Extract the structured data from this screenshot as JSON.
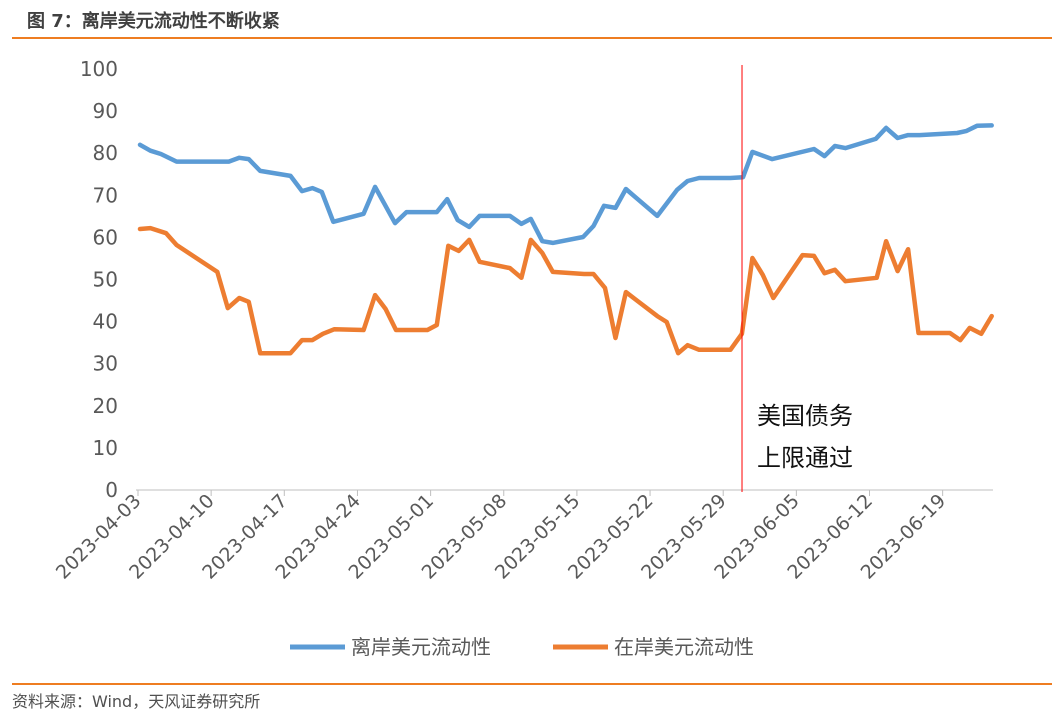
{
  "header": {
    "title": "图 7：离岸美元流动性不断收紧"
  },
  "footer": {
    "source": "资料来源：Wind，天风证券研究所"
  },
  "colors": {
    "offshore": "#5B9BD5",
    "onshore": "#ED7D31",
    "marker_line": "#FF0000",
    "rule": "#EE7D21"
  },
  "chart_data": {
    "type": "line",
    "title": "离岸美元流动性不断收紧",
    "x_unit": "days since 2023-04-03",
    "ylim": [
      0,
      100
    ],
    "yticks": [
      0,
      10,
      20,
      30,
      40,
      50,
      60,
      70,
      80,
      90,
      100
    ],
    "xticks": [
      {
        "day": 0,
        "label": "2023-04-03"
      },
      {
        "day": 7,
        "label": "2023-04-10"
      },
      {
        "day": 14,
        "label": "2023-04-17"
      },
      {
        "day": 21,
        "label": "2023-04-24"
      },
      {
        "day": 28,
        "label": "2023-05-01"
      },
      {
        "day": 35,
        "label": "2023-05-08"
      },
      {
        "day": 42,
        "label": "2023-05-15"
      },
      {
        "day": 49,
        "label": "2023-05-22"
      },
      {
        "day": 56,
        "label": "2023-05-29"
      },
      {
        "day": 63,
        "label": "2023-06-05"
      },
      {
        "day": 70,
        "label": "2023-06-12"
      },
      {
        "day": 77,
        "label": "2023-06-19"
      }
    ],
    "xlim": [
      0,
      82
    ],
    "legend_position": "bottom",
    "grid": false,
    "annotation": {
      "day": 57.8,
      "lines": [
        "美国债务",
        "上限通过"
      ]
    },
    "series": [
      {
        "name": "离岸美元流动性",
        "points": [
          [
            0,
            82.0
          ],
          [
            1,
            80.6
          ],
          [
            2,
            79.8
          ],
          [
            3.5,
            78.0
          ],
          [
            8.5,
            78.0
          ],
          [
            9.5,
            78.9
          ],
          [
            10.4,
            78.6
          ],
          [
            11.5,
            75.8
          ],
          [
            14.4,
            74.6
          ],
          [
            15.5,
            71.0
          ],
          [
            16.5,
            71.7
          ],
          [
            17.4,
            70.8
          ],
          [
            18.5,
            63.7
          ],
          [
            21.4,
            65.6
          ],
          [
            22.5,
            72.0
          ],
          [
            24.4,
            63.4
          ],
          [
            25.5,
            66.0
          ],
          [
            28.4,
            66.0
          ],
          [
            29.4,
            69.1
          ],
          [
            30.4,
            64.1
          ],
          [
            31.5,
            62.5
          ],
          [
            32.5,
            65.1
          ],
          [
            35.4,
            65.1
          ],
          [
            36.5,
            63.2
          ],
          [
            37.4,
            64.4
          ],
          [
            38.5,
            59.1
          ],
          [
            39.5,
            58.7
          ],
          [
            42.4,
            60.1
          ],
          [
            43.4,
            62.7
          ],
          [
            44.4,
            67.5
          ],
          [
            45.5,
            67.0
          ],
          [
            46.5,
            71.5
          ],
          [
            49.5,
            65.1
          ],
          [
            51.4,
            71.3
          ],
          [
            52.4,
            73.4
          ],
          [
            53.5,
            74.1
          ],
          [
            56.5,
            74.1
          ],
          [
            57.7,
            74.3
          ],
          [
            58.6,
            80.3
          ],
          [
            60.5,
            78.6
          ],
          [
            64.5,
            81.0
          ],
          [
            65.5,
            79.3
          ],
          [
            66.5,
            81.7
          ],
          [
            67.5,
            81.2
          ],
          [
            70.4,
            83.4
          ],
          [
            71.4,
            86.0
          ],
          [
            72.5,
            83.6
          ],
          [
            73.5,
            84.3
          ],
          [
            74.6,
            84.3
          ],
          [
            78.2,
            84.8
          ],
          [
            79.1,
            85.3
          ],
          [
            80.1,
            86.5
          ],
          [
            81.5,
            86.6
          ]
        ]
      },
      {
        "name": "在岸美元流动性",
        "points": [
          [
            0,
            62.0
          ],
          [
            1,
            62.2
          ],
          [
            2.5,
            61.0
          ],
          [
            3.5,
            58.2
          ],
          [
            7.4,
            51.8
          ],
          [
            8.4,
            43.2
          ],
          [
            9.5,
            45.6
          ],
          [
            10.4,
            44.7
          ],
          [
            11.5,
            32.5
          ],
          [
            14.4,
            32.5
          ],
          [
            15.5,
            35.6
          ],
          [
            16.5,
            35.6
          ],
          [
            17.5,
            37.1
          ],
          [
            18.6,
            38.2
          ],
          [
            21.4,
            38.0
          ],
          [
            22.5,
            46.3
          ],
          [
            23.5,
            43.0
          ],
          [
            24.5,
            38.0
          ],
          [
            27.5,
            38.0
          ],
          [
            28.4,
            39.2
          ],
          [
            29.5,
            58.0
          ],
          [
            30.5,
            56.8
          ],
          [
            31.5,
            59.4
          ],
          [
            32.5,
            54.2
          ],
          [
            35.4,
            52.7
          ],
          [
            36.5,
            50.4
          ],
          [
            37.4,
            59.4
          ],
          [
            38.5,
            56.3
          ],
          [
            39.5,
            51.8
          ],
          [
            42.5,
            51.3
          ],
          [
            43.4,
            51.3
          ],
          [
            44.5,
            48.0
          ],
          [
            45.5,
            36.1
          ],
          [
            46.5,
            47.0
          ],
          [
            49.5,
            41.3
          ],
          [
            50.4,
            39.9
          ],
          [
            51.5,
            32.5
          ],
          [
            52.4,
            34.4
          ],
          [
            53.5,
            33.3
          ],
          [
            56.5,
            33.3
          ],
          [
            57.6,
            37.1
          ],
          [
            58.6,
            55.1
          ],
          [
            59.6,
            51.1
          ],
          [
            60.6,
            45.6
          ],
          [
            63.4,
            55.8
          ],
          [
            64.5,
            55.6
          ],
          [
            65.5,
            51.5
          ],
          [
            66.5,
            52.3
          ],
          [
            67.5,
            49.6
          ],
          [
            70.5,
            50.4
          ],
          [
            71.4,
            59.1
          ],
          [
            72.5,
            52.0
          ],
          [
            73.5,
            57.2
          ],
          [
            74.5,
            37.3
          ],
          [
            77.5,
            37.3
          ],
          [
            78.5,
            35.6
          ],
          [
            79.4,
            38.5
          ],
          [
            80.5,
            37.1
          ],
          [
            81.5,
            41.3
          ]
        ]
      }
    ]
  }
}
